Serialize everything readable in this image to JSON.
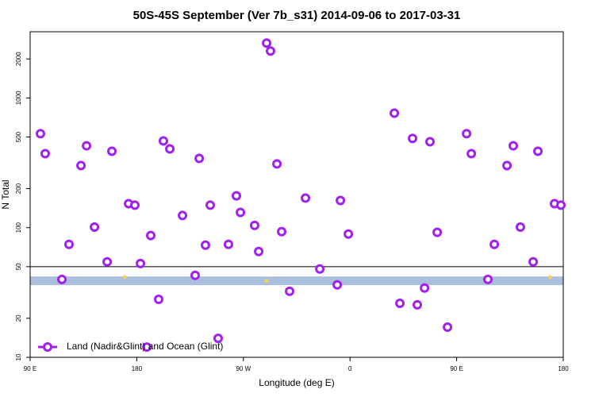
{
  "chart_data": {
    "type": "scatter",
    "title": "50S-45S September (Ver 7b_s31)   2014-09-06 to 2017-03-31",
    "xlabel": "Longitude (deg E)",
    "ylabel": "N Total",
    "xlim": [
      90,
      540
    ],
    "ylim": [
      10,
      3240
    ],
    "log_y": true,
    "xticks": [
      {
        "value": 90,
        "label": "90 E"
      },
      {
        "value": 180,
        "label": "180"
      },
      {
        "value": 270,
        "label": "90 W"
      },
      {
        "value": 360,
        "label": "0"
      },
      {
        "value": 450,
        "label": "90 E"
      },
      {
        "value": 540,
        "label": "180"
      }
    ],
    "yticks": [
      10,
      20,
      50,
      100,
      200,
      500,
      1000,
      2000
    ],
    "reference_line": 50,
    "band": [
      36,
      42
    ],
    "band_color": "#a9bfdd",
    "legend": "bottom left",
    "series": [
      {
        "name": "Land (Nadir&Glint) and Ocean (Glint)",
        "color": "#a020f0",
        "x": [
          98.7,
          102.7,
          116.8,
          122.8,
          132.9,
          137.6,
          144.3,
          155,
          159,
          173.1,
          178.4,
          183.1,
          188.5,
          191.8,
          198.5,
          202.5,
          207.9,
          218.6,
          229.3,
          232.7,
          238,
          242,
          248.7,
          257.4,
          264.1,
          267.5,
          279.5,
          282.9,
          289.6,
          292.9,
          298.3,
          302.3,
          309,
          322.4,
          334.5,
          349.2,
          351.9,
          358.6,
          397.4,
          402.1,
          412.8,
          416.8,
          422.9,
          427.5,
          433.6,
          442.3,
          458.4,
          462.4,
          476.4,
          481.8,
          492.5,
          497.8,
          503.8,
          514.6,
          518.6,
          532.6,
          538
        ],
        "values": [
          530,
          372,
          39.9,
          74.3,
          301,
          428,
          101,
          54.5,
          388,
          153,
          149,
          52.9,
          12,
          86.9,
          28,
          466,
          405,
          124,
          42.9,
          342,
          73.3,
          149,
          14,
          74.3,
          176,
          131,
          104,
          65.5,
          2650,
          2300,
          310,
          93.1,
          32.3,
          169,
          48,
          36.2,
          162,
          89.3,
          764,
          26.1,
          487,
          25.4,
          34.2,
          460,
          91.9,
          17.1,
          530,
          372,
          39.9,
          74.3,
          301,
          428,
          101,
          54.5,
          388,
          153,
          149
        ]
      },
      {
        "color": "#f5d060",
        "x": [
          169.7,
          289.6,
          528.6
        ],
        "values": [
          41.6,
          38.8,
          41.6
        ]
      }
    ]
  }
}
